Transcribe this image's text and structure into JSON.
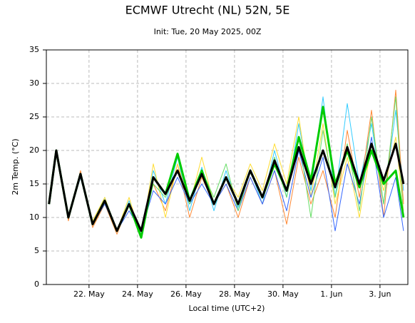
{
  "chart_data": {
    "type": "line",
    "title": "ECMWF Utrecht (NL) 52N, 5E",
    "subtitle": "Init: Tue, 20 May 2025, 00Z",
    "y_label": "2m Temp. (°C)",
    "x_label": "Local time (UTC+2)",
    "x": [
      20.35,
      20.65,
      21.15,
      21.65,
      22.15,
      22.65,
      23.15,
      23.65,
      24.15,
      24.65,
      25.15,
      25.65,
      26.15,
      26.65,
      27.15,
      27.65,
      28.15,
      28.65,
      29.15,
      29.65,
      30.15,
      30.65,
      31.15,
      31.65,
      32.15,
      32.65,
      33.15,
      33.65,
      34.15,
      34.65,
      34.97
    ],
    "xlim": [
      20.24,
      35.15
    ],
    "xticks": [
      {
        "value": 22,
        "label": "22. May"
      },
      {
        "value": 24,
        "label": "24. May"
      },
      {
        "value": 26,
        "label": "26. May"
      },
      {
        "value": 28,
        "label": "28. May"
      },
      {
        "value": 30,
        "label": "30. May"
      },
      {
        "value": 32,
        "label": "1. Jun"
      },
      {
        "value": 34,
        "label": "3. Jun"
      }
    ],
    "ylim": [
      0,
      35
    ],
    "yticks": [
      0,
      5,
      10,
      15,
      20,
      25,
      30,
      35
    ],
    "grid": true,
    "series": [
      {
        "color": "#33ccff",
        "width": 1,
        "values": [
          12,
          20,
          10,
          16,
          9,
          13,
          8,
          12.5,
          7.5,
          17,
          12,
          19,
          11,
          17.5,
          11,
          17,
          11.5,
          17,
          12,
          20,
          13,
          24,
          14,
          28,
          13,
          27,
          15,
          24,
          12,
          26,
          14
        ]
      },
      {
        "color": "#ff8833",
        "width": 1,
        "values": [
          12,
          19.5,
          9.5,
          17,
          8.5,
          12,
          7.5,
          12,
          8,
          15,
          11,
          18,
          10,
          16,
          12,
          15,
          10,
          16,
          12,
          17,
          9,
          19,
          12,
          17,
          10,
          23,
          13,
          26,
          10,
          29,
          12
        ]
      },
      {
        "color": "#ffdd33",
        "width": 1,
        "values": [
          12,
          20,
          10,
          16.5,
          9.5,
          13,
          8,
          13,
          7,
          18,
          10,
          18,
          12,
          19,
          12,
          16,
          13,
          18,
          14,
          21,
          15,
          25,
          13,
          24,
          12,
          19,
          10,
          21,
          14,
          22,
          11
        ]
      },
      {
        "color": "#3366ff",
        "width": 1,
        "values": [
          12,
          20,
          10,
          16,
          9,
          12,
          8,
          11,
          8,
          14,
          12,
          16,
          12,
          15,
          12,
          15,
          11,
          16,
          12,
          17,
          11,
          20,
          13,
          19,
          8,
          18,
          12,
          22,
          10,
          16,
          8
        ]
      },
      {
        "color": "#66dd66",
        "width": 1,
        "values": [
          12,
          19.5,
          10,
          16.5,
          9,
          12.5,
          8,
          12,
          7.5,
          15,
          13,
          17,
          12,
          17,
          13,
          18,
          11,
          17,
          13,
          19,
          13,
          22,
          10,
          23,
          13,
          21,
          11,
          25,
          12,
          28,
          10
        ]
      },
      {
        "color": "#00cc00",
        "width": 3,
        "values": [
          12,
          20,
          10,
          16.5,
          9,
          12.5,
          8,
          12,
          7,
          16,
          13.5,
          19.5,
          12.5,
          17,
          12,
          16,
          12,
          17,
          13,
          18,
          14,
          22,
          15.5,
          26.5,
          15,
          20,
          14.5,
          20,
          15,
          17,
          10
        ]
      },
      {
        "color": "#000000",
        "width": 3,
        "values": [
          12,
          20,
          10,
          16.5,
          9,
          12.5,
          8,
          12,
          8,
          16,
          13.5,
          17,
          12.5,
          16.5,
          12,
          16,
          12,
          17,
          13,
          18.5,
          14,
          20.5,
          15,
          20,
          14.5,
          20.5,
          15,
          21,
          15.5,
          21,
          15
        ]
      }
    ]
  }
}
